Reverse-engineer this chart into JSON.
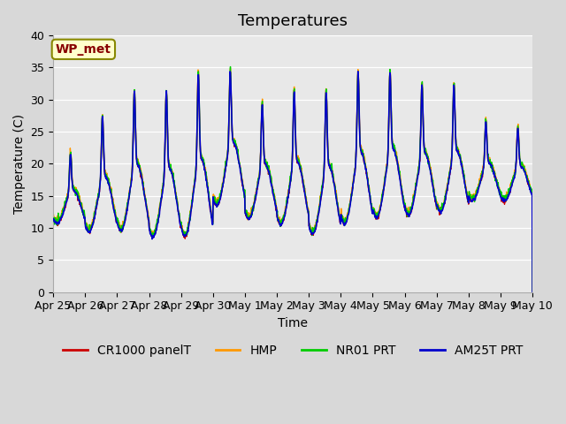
{
  "title": "Temperatures",
  "xlabel": "Time",
  "ylabel": "Temperature (C)",
  "ylim": [
    0,
    40
  ],
  "yticks": [
    0,
    5,
    10,
    15,
    20,
    25,
    30,
    35,
    40
  ],
  "background_color": "#e8e8e8",
  "series": [
    "CR1000 panelT",
    "HMP",
    "NR01 PRT",
    "AM25T PRT"
  ],
  "colors": [
    "#cc0000",
    "#ff9900",
    "#00cc00",
    "#0000cc"
  ],
  "annotation_text": "WP_met",
  "annotation_bg": "#ffffcc",
  "annotation_border": "#888800",
  "annotation_text_color": "#880000",
  "x_tick_labels": [
    "Apr 25",
    "Apr 26",
    "Apr 27",
    "Apr 28",
    "Apr 29",
    "Apr 30",
    "May 1",
    "May 2",
    "May 3",
    "May 4",
    "May 5",
    "May 6",
    "May 7",
    "May 8",
    "May 9",
    "May 10"
  ],
  "x_tick_positions": [
    0,
    1,
    2,
    3,
    4,
    5,
    6,
    7,
    8,
    9,
    10,
    11,
    12,
    13,
    14,
    15
  ],
  "n_days": 15,
  "day_maxima": [
    22,
    28,
    32,
    32,
    35,
    35,
    30,
    32,
    32,
    35,
    35,
    33,
    33,
    27,
    26
  ],
  "day_minima": [
    10.5,
    9,
    9,
    8,
    8,
    13,
    11,
    10,
    8.5,
    10,
    11,
    11.5,
    12,
    14,
    14
  ],
  "title_fontsize": 13,
  "axis_label_fontsize": 10,
  "tick_fontsize": 9,
  "legend_fontsize": 10
}
